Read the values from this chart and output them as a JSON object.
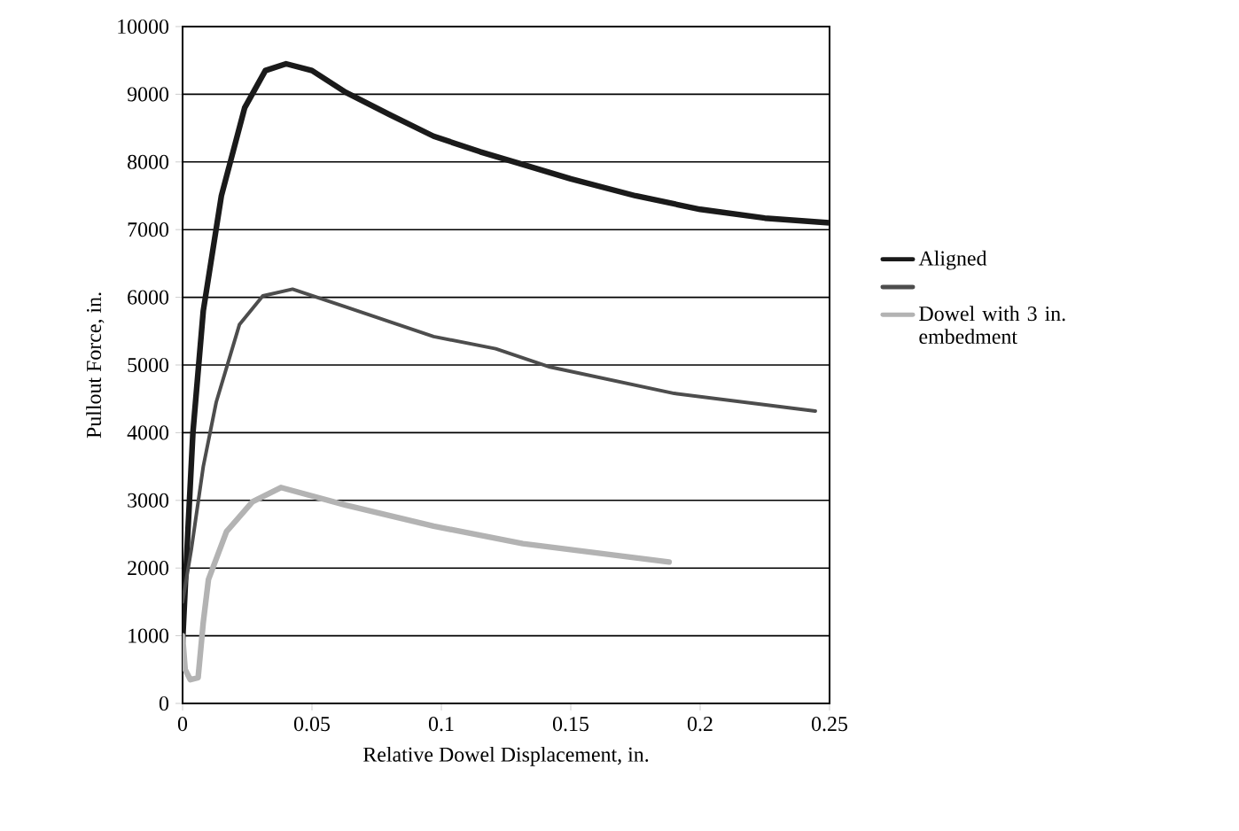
{
  "chart_data": {
    "type": "line",
    "xlabel": "Relative Dowel Displacement, in.",
    "ylabel": "Pullout Force, in.",
    "xlim": [
      0,
      0.25
    ],
    "xticks": [
      0,
      0.05,
      0.1,
      0.15,
      0.2,
      0.25
    ],
    "ylim": [
      0,
      10000
    ],
    "yticks": [
      0,
      1000,
      2000,
      3000,
      4000,
      5000,
      6000,
      7000,
      8000,
      9000,
      10000
    ],
    "grid": "y",
    "legend": "right",
    "series": [
      {
        "name": "Aligned",
        "color": "#1a1a1a",
        "x": [
          0,
          0.002,
          0.004,
          0.008,
          0.015,
          0.024,
          0.032,
          0.04,
          0.05,
          0.063,
          0.08,
          0.097,
          0.115,
          0.13,
          0.15,
          0.175,
          0.2,
          0.225,
          0.25
        ],
        "values": [
          900,
          2500,
          4000,
          5800,
          7500,
          8800,
          9350,
          9450,
          9350,
          9030,
          8700,
          8380,
          8150,
          7980,
          7750,
          7500,
          7300,
          7170,
          7100
        ]
      },
      {
        "color": "#4d4d4d",
        "x": [
          0,
          0.0034,
          0.008,
          0.013,
          0.022,
          0.031,
          0.0425,
          0.063,
          0.097,
          0.121,
          0.142,
          0.19,
          0.2445
        ],
        "values": [
          1500,
          2280,
          3500,
          4450,
          5600,
          6020,
          6120,
          5860,
          5420,
          5240,
          4970,
          4580,
          4320
        ]
      },
      {
        "name": "Dowel with 3 in. embedment",
        "color": "#b3b3b3",
        "x": [
          0,
          0.001,
          0.003,
          0.006,
          0.008,
          0.01,
          0.017,
          0.027,
          0.038,
          0.063,
          0.097,
          0.1315,
          0.188
        ],
        "values": [
          1000,
          500,
          350,
          380,
          1200,
          1830,
          2540,
          2980,
          3190,
          2930,
          2620,
          2360,
          2090
        ]
      }
    ]
  }
}
